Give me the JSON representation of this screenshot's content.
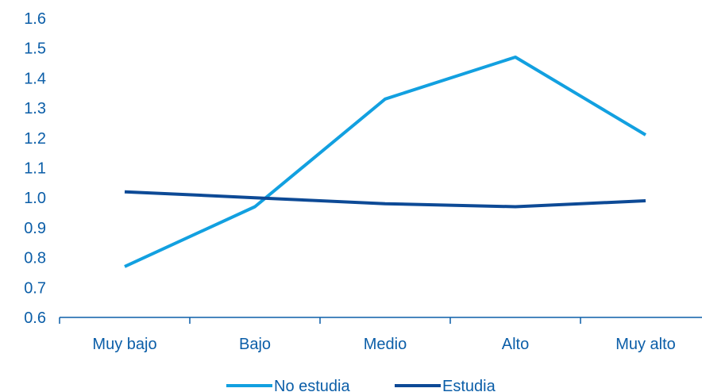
{
  "chart_data": {
    "type": "line",
    "categories": [
      "Muy bajo",
      "Bajo",
      "Medio",
      "Alto",
      "Muy alto"
    ],
    "series": [
      {
        "name": "No estudia",
        "values": [
          0.77,
          0.97,
          1.33,
          1.47,
          1.21
        ],
        "color": "#12a0e0"
      },
      {
        "name": "Estudia",
        "values": [
          1.02,
          1.0,
          0.98,
          0.97,
          0.99
        ],
        "color": "#0d4a96"
      }
    ],
    "ylim": [
      0.6,
      1.6
    ],
    "yticks": [
      "0.6",
      "0.7",
      "0.8",
      "0.9",
      "1.0",
      "1.1",
      "1.2",
      "1.3",
      "1.4",
      "1.5",
      "1.6"
    ],
    "grid": false,
    "legend_position": "bottom",
    "title": "",
    "xlabel": "",
    "ylabel": "",
    "axis_color": "#0b5ea8"
  }
}
